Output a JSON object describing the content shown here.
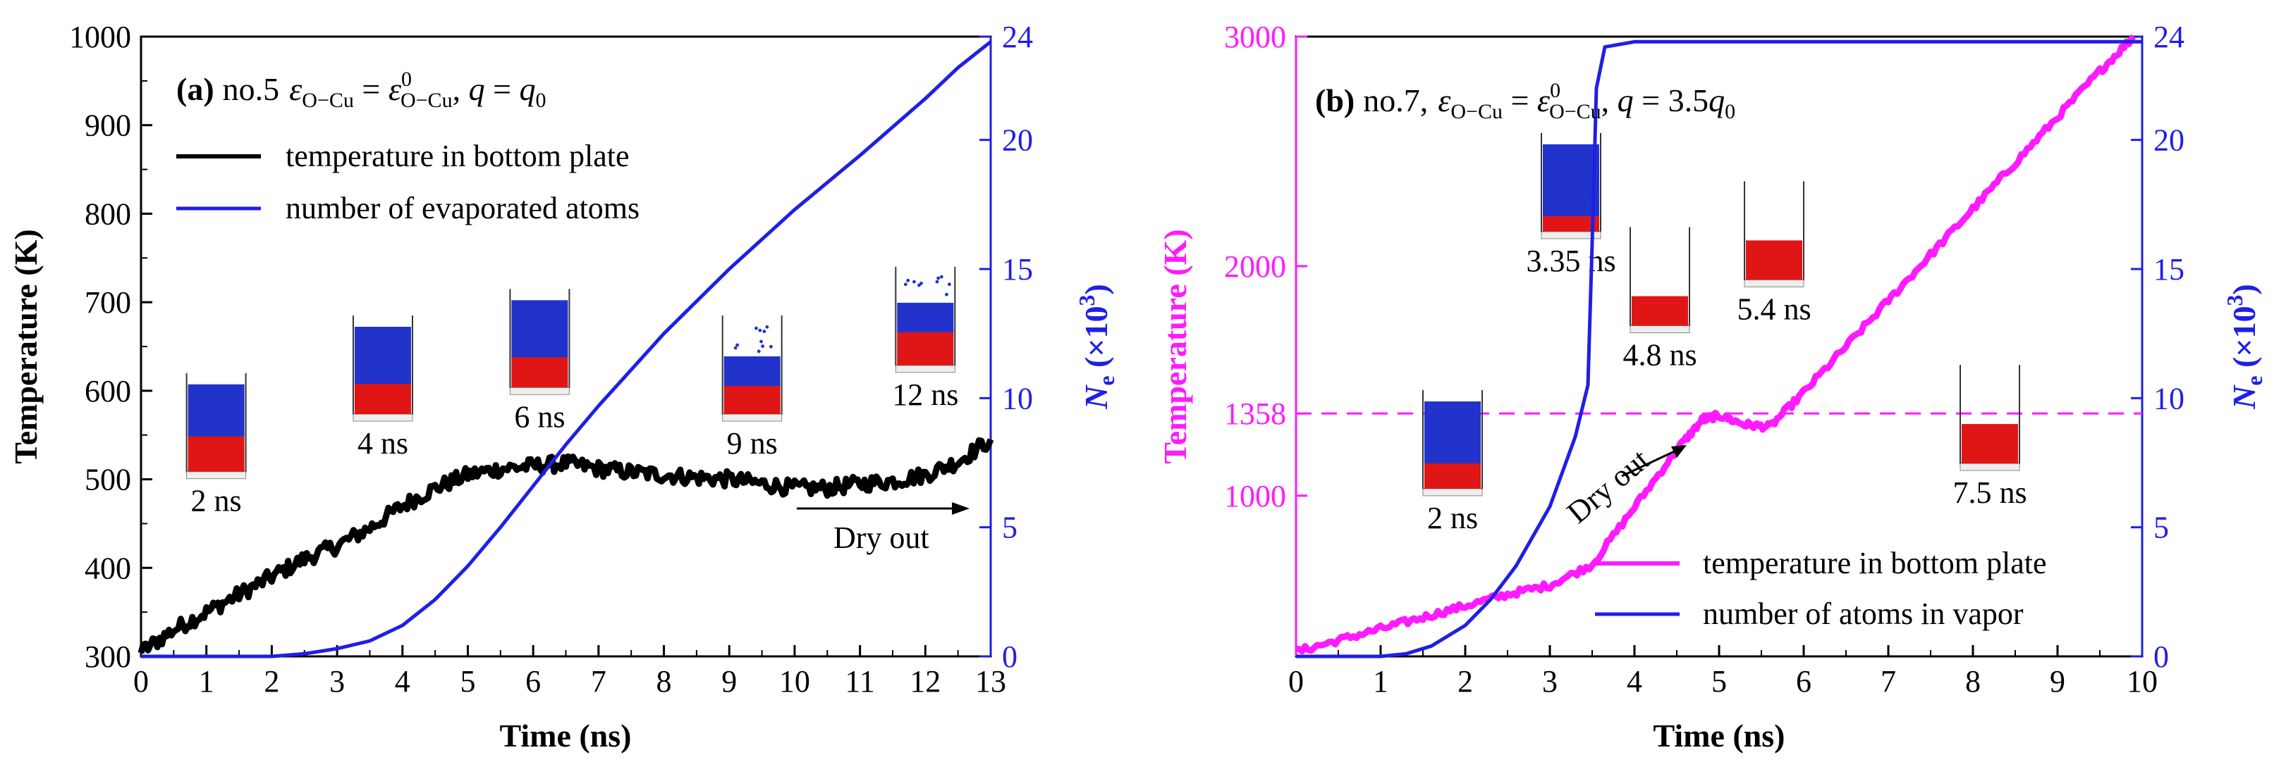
{
  "colors": {
    "black": "#000000",
    "blue": "#1f1fe6",
    "magenta": "#ff1aff",
    "atom_red": "#e01515",
    "atom_blue": "#2233cc"
  },
  "chart_data": [
    {
      "id": "a",
      "type": "line",
      "title_label": "(a)",
      "title_text": "no.5",
      "eps_label": "ε",
      "eps_sub": "O−Cu",
      "eps_eq": " = ",
      "eps_sup0": "0",
      "q_text": "q",
      "q_eq": " = ",
      "q0_sub": "0",
      "xlabel": "Time (ns)",
      "ylabel_left": "Temperature (K)",
      "ylabel_right_main": "N",
      "ylabel_right_sub": "e",
      "ylabel_right_rest": " (×10",
      "ylabel_right_exp": "3",
      "ylabel_right_close": ")",
      "xlim": [
        0,
        13
      ],
      "ylim_left": [
        300,
        1000
      ],
      "ylim_right": [
        0,
        24
      ],
      "xticks": [
        "0",
        "1",
        "2",
        "3",
        "4",
        "5",
        "6",
        "7",
        "8",
        "9",
        "10",
        "11",
        "12",
        "13"
      ],
      "yticks_left": [
        "300",
        "400",
        "500",
        "600",
        "700",
        "800",
        "900",
        "1000"
      ],
      "yticks_right": [
        "0",
        "5",
        "10",
        "15",
        "20",
        "24"
      ],
      "series": [
        {
          "name": "temperature in bottom plate",
          "axis": "left",
          "color": "#000000",
          "x": [
            0,
            0.5,
            1,
            1.5,
            2,
            2.5,
            3,
            3.5,
            4,
            4.5,
            5,
            5.5,
            6,
            6.5,
            7,
            7.5,
            8,
            8.5,
            9,
            9.5,
            10,
            10.5,
            11,
            11.5,
            12,
            12.5,
            13
          ],
          "y": [
            305,
            330,
            350,
            370,
            390,
            410,
            425,
            445,
            470,
            490,
            505,
            512,
            515,
            518,
            512,
            508,
            505,
            502,
            500,
            495,
            490,
            490,
            495,
            498,
            505,
            520,
            545
          ]
        },
        {
          "name": "number of evaporated atoms",
          "axis": "right",
          "color": "#1f1fe6",
          "x": [
            0,
            1,
            2,
            2.5,
            3,
            3.5,
            4,
            4.5,
            5,
            5.5,
            6,
            6.5,
            7,
            7.5,
            8,
            9,
            10,
            11,
            12,
            12.5,
            13
          ],
          "y": [
            0,
            0,
            0,
            0.1,
            0.3,
            0.6,
            1.2,
            2.2,
            3.5,
            5.0,
            6.6,
            8.2,
            9.7,
            11.1,
            12.5,
            15.0,
            17.3,
            19.4,
            21.6,
            22.8,
            23.8
          ]
        }
      ],
      "annotations": [
        {
          "text": "2 ns",
          "x": 1.15,
          "y_top": 620,
          "fill": 0.4,
          "atoms": 1
        },
        {
          "text": "4 ns",
          "x": 3.7,
          "y_top": 685,
          "fill": 0.35,
          "atoms": 1
        },
        {
          "text": "6 ns",
          "x": 6.1,
          "y_top": 715,
          "fill": 0.35,
          "atoms": 1
        },
        {
          "text": "9 ns",
          "x": 9.35,
          "y_top": 685,
          "fill": 0.3,
          "atoms": 0.6
        },
        {
          "text": "12 ns",
          "x": 12.0,
          "y_top": 740,
          "fill": 0.35,
          "atoms": 0.6
        }
      ],
      "dry_out": "Dry out"
    },
    {
      "id": "b",
      "type": "line",
      "title_label": "(b)",
      "title_text": "no.7,",
      "eps_label": "ε",
      "eps_sub": "O−Cu",
      "eps_eq": " = ",
      "eps_sup0": "0",
      "q_text": "q",
      "q_eq": " = 3.5",
      "q0_sub": "0",
      "xlabel": "Time (ns)",
      "ylabel_left": "Temperature (K)",
      "ylabel_right_main": "N",
      "ylabel_right_sub": "e",
      "ylabel_right_rest": " (×10",
      "ylabel_right_exp": "3",
      "ylabel_right_close": ")",
      "xlim": [
        0,
        10
      ],
      "ylim_left": [
        300,
        3000
      ],
      "ylim_right": [
        0,
        24
      ],
      "xticks": [
        "0",
        "1",
        "2",
        "3",
        "4",
        "5",
        "6",
        "7",
        "8",
        "9",
        "10"
      ],
      "yticks_left": [
        "1000",
        "1358",
        "2000",
        "3000"
      ],
      "yticks_left_values": [
        1000,
        1358,
        2000,
        3000
      ],
      "yticks_right": [
        "0",
        "5",
        "10",
        "15",
        "20",
        "24"
      ],
      "hline": 1358,
      "series": [
        {
          "name": "temperature in bottom plate",
          "axis": "left",
          "color": "#ff1aff",
          "x": [
            0,
            0.5,
            1,
            1.5,
            2,
            2.5,
            3,
            3.5,
            4,
            4.5,
            4.8,
            5,
            5.3,
            5.6,
            6,
            6.5,
            7,
            7.5,
            8,
            8.5,
            9,
            9.5,
            9.9
          ],
          "y": [
            320,
            370,
            420,
            470,
            520,
            570,
            610,
            700,
            950,
            1200,
            1330,
            1350,
            1310,
            1300,
            1450,
            1650,
            1850,
            2050,
            2250,
            2450,
            2650,
            2850,
            3000
          ]
        },
        {
          "name": "number of atoms in vapor",
          "axis": "right",
          "color": "#1f1fe6",
          "x": [
            0,
            1,
            1.3,
            1.6,
            2,
            2.3,
            2.6,
            3.0,
            3.3,
            3.45,
            3.5,
            3.55,
            3.65,
            4,
            6,
            8,
            10
          ],
          "y": [
            0,
            0,
            0.1,
            0.4,
            1.2,
            2.2,
            3.5,
            5.8,
            8.5,
            10.5,
            16.0,
            22.0,
            23.6,
            23.8,
            23.8,
            23.8,
            23.8
          ]
        }
      ],
      "annotations": [
        {
          "text": "3.35 ns",
          "x": 3.25,
          "y_top": 2580,
          "fill": 0.2,
          "atoms": 1
        },
        {
          "text": "4.8 ns",
          "x": 4.3,
          "y_top": 2170,
          "fill": 0.3,
          "atoms": 0
        },
        {
          "text": "5.4 ns",
          "x": 5.65,
          "y_top": 2370,
          "fill": 0.4,
          "atoms": 0
        },
        {
          "text": "2 ns",
          "x": 1.85,
          "y_top": 1460,
          "fill": 0.3,
          "atoms": 1
        },
        {
          "text": "7.5 ns",
          "x": 8.2,
          "y_top": 1570,
          "fill": 0.4,
          "atoms": 0
        }
      ],
      "dry_out": "Dry out"
    }
  ]
}
